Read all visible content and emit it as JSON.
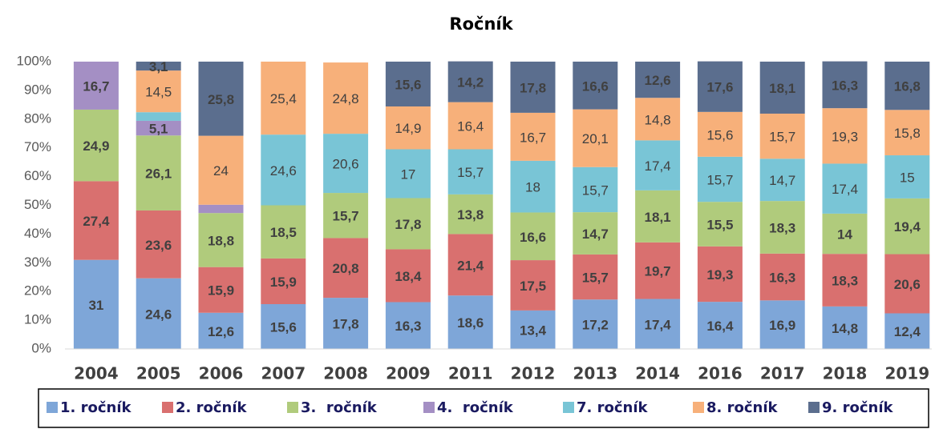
{
  "chart_data": {
    "type": "stacked_bar",
    "title": "Ročník",
    "categories": [
      "2004",
      "2005",
      "2006",
      "2007",
      "2008",
      "2009",
      "2011",
      "2012",
      "2013",
      "2014",
      "2016",
      "2017",
      "2018",
      "2019"
    ],
    "ylim": [
      0,
      100
    ],
    "yticks": [
      {
        "value": 0,
        "label": "0%"
      },
      {
        "value": 10,
        "label": "10%"
      },
      {
        "value": 20,
        "label": "20%"
      },
      {
        "value": 30,
        "label": "30%"
      },
      {
        "value": 40,
        "label": "40%"
      },
      {
        "value": 50,
        "label": "50%"
      },
      {
        "value": 60,
        "label": "60%"
      },
      {
        "value": 70,
        "label": "70%"
      },
      {
        "value": 80,
        "label": "80%"
      },
      {
        "value": 90,
        "label": "90%"
      },
      {
        "value": 100,
        "label": "100%"
      }
    ],
    "grid": false,
    "series": [
      {
        "name": "1. ročník",
        "color": "#7ea6d8",
        "values": [
          31,
          24.6,
          12.6,
          15.6,
          17.8,
          16.3,
          18.6,
          13.4,
          17.2,
          17.4,
          16.4,
          16.9,
          14.8,
          12.4
        ],
        "value_labels": [
          "31",
          "24,6",
          "12,6",
          "15,6",
          "17,8",
          "16,3",
          "18,6",
          "13,4",
          "17,2",
          "17,4",
          "16,4",
          "16,9",
          "14,8",
          "12,4"
        ]
      },
      {
        "name": "2. ročník",
        "color": "#d9706f",
        "values": [
          27.4,
          23.6,
          15.9,
          15.9,
          20.8,
          18.4,
          21.4,
          17.5,
          15.7,
          19.7,
          19.3,
          16.3,
          18.3,
          20.6
        ],
        "value_labels": [
          "27,4",
          "23,6",
          "15,9",
          "15,9",
          "20,8",
          "18,4",
          "21,4",
          "17,5",
          "15,7",
          "19,7",
          "19,3",
          "16,3",
          "18,3",
          "20,6"
        ]
      },
      {
        "name": "3.  ročník",
        "color": "#b0cb7c",
        "values": [
          24.9,
          26.1,
          18.8,
          18.5,
          15.7,
          17.8,
          13.8,
          16.6,
          14.7,
          18.1,
          15.5,
          18.3,
          14,
          19.4
        ],
        "value_labels": [
          "24,9",
          "26,1",
          "18,8",
          "18,5",
          "15,7",
          "17,8",
          "13,8",
          "16,6",
          "14,7",
          "18,1",
          "15,5",
          "18,3",
          "14",
          "19,4"
        ]
      },
      {
        "name": "4.  ročník",
        "color": "#a48fc4",
        "values": [
          16.7,
          5.1,
          2.9,
          null,
          null,
          null,
          null,
          null,
          null,
          null,
          null,
          null,
          null,
          null
        ],
        "value_labels": [
          "16,7",
          "5,1",
          null,
          null,
          null,
          null,
          null,
          null,
          null,
          null,
          null,
          null,
          null,
          null
        ]
      },
      {
        "name": "7. ročník",
        "color": "#79c5d6",
        "values": [
          null,
          3,
          null,
          24.6,
          20.6,
          17,
          15.7,
          18,
          15.7,
          17.4,
          15.7,
          14.7,
          17.4,
          15
        ],
        "value_labels": [
          null,
          null,
          null,
          "24,6",
          "20,6",
          "17",
          "15,7",
          "18",
          "15,7",
          "17,4",
          "15,7",
          "14,7",
          "17,4",
          "15"
        ]
      },
      {
        "name": "8. ročník",
        "color": "#f7b07a",
        "values": [
          null,
          14.5,
          24,
          25.4,
          24.8,
          14.9,
          16.4,
          16.7,
          20.1,
          14.8,
          15.6,
          15.7,
          19.3,
          15.8
        ],
        "value_labels": [
          null,
          "14,5",
          "24",
          "25,4",
          "24,8",
          "14,9",
          "16,4",
          "16,7",
          "20,1",
          "14,8",
          "15,6",
          "15,7",
          "19,3",
          "15,8"
        ]
      },
      {
        "name": "9. ročník",
        "color": "#5b6e8e",
        "values": [
          null,
          3.1,
          25.8,
          null,
          null,
          15.6,
          14.2,
          17.8,
          16.6,
          12.6,
          17.6,
          18.1,
          16.3,
          16.8
        ],
        "value_labels": [
          null,
          "3,1",
          "25,8",
          null,
          null,
          "15,6",
          "14,2",
          "17,8",
          "16,6",
          "12,6",
          "17,6",
          "18,1",
          "16,3",
          "16,8"
        ]
      }
    ]
  }
}
